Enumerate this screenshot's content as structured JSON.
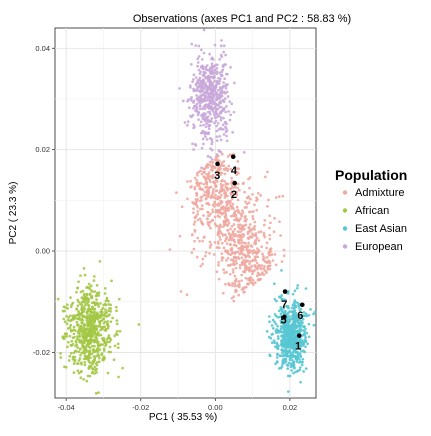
{
  "chart_data": {
    "type": "scatter",
    "title": "Observations (axes PC1 and PC2 :  58.83 %)",
    "xlabel": "PC1 ( 35.53 %)",
    "ylabel": "PC2 ( 23.3 %)",
    "xlim": [
      -0.043,
      0.027
    ],
    "ylim": [
      -0.029,
      0.044
    ],
    "x_ticks": [
      -0.04,
      -0.02,
      0.0,
      0.02
    ],
    "x_tick_labels": [
      "-0.04",
      "-0.02",
      "0.00",
      "0.02"
    ],
    "y_ticks": [
      -0.02,
      0.0,
      0.02,
      0.04
    ],
    "y_tick_labels": [
      "-0.02",
      "0.00",
      "0.02",
      "0.04"
    ],
    "grid": true,
    "legend": {
      "title": "Population",
      "placement": "right",
      "entries": [
        "Admixture",
        "African",
        "East Asian",
        "European"
      ]
    },
    "series": [
      {
        "name": "African",
        "color": "#A3C845",
        "cloud": {
          "center": [
            -0.0335,
            -0.0155
          ],
          "spread": [
            0.003,
            0.0042
          ],
          "count": 650
        },
        "stray_points": [
          [
            -0.0205,
            -0.0145
          ],
          [
            -0.0265,
            -0.0118
          ]
        ]
      },
      {
        "name": "East Asian",
        "color": "#56C6D3",
        "cloud": {
          "center": [
            0.0203,
            -0.0165
          ],
          "spread": [
            0.0022,
            0.0035
          ],
          "count": 600
        }
      },
      {
        "name": "European",
        "color": "#C9A7D9",
        "cloud": {
          "center": [
            -0.0015,
            0.0305
          ],
          "spread": [
            0.0027,
            0.0045
          ],
          "count": 520
        }
      },
      {
        "name": "Admixture",
        "color": "#F0A8A0",
        "band": {
          "from": [
            -0.0025,
            0.017
          ],
          "to": [
            0.0115,
            -0.006
          ],
          "width": 0.0038,
          "count": 850
        }
      }
    ],
    "annotations": [
      {
        "label": "1",
        "point": [
          0.0225,
          -0.0167
        ],
        "label_pos": [
          0.0222,
          -0.0186
        ]
      },
      {
        "label": "2",
        "point": [
          0.0052,
          0.0134
        ],
        "label_pos": [
          0.005,
          0.0112
        ]
      },
      {
        "label": "3",
        "point": [
          0.0006,
          0.0172
        ],
        "label_pos": [
          0.0005,
          0.015
        ]
      },
      {
        "label": "4",
        "point": [
          0.0048,
          0.0186
        ],
        "label_pos": [
          0.005,
          0.016
        ]
      },
      {
        "label": "5",
        "point": [
          0.0185,
          -0.013
        ],
        "label_pos": [
          0.0183,
          -0.0135
        ]
      },
      {
        "label": "6",
        "point": [
          0.0233,
          -0.0106
        ],
        "label_pos": [
          0.0228,
          -0.0126
        ]
      },
      {
        "label": "7",
        "point": [
          0.0187,
          -0.008
        ],
        "label_pos": [
          0.0185,
          -0.0105
        ]
      }
    ]
  }
}
